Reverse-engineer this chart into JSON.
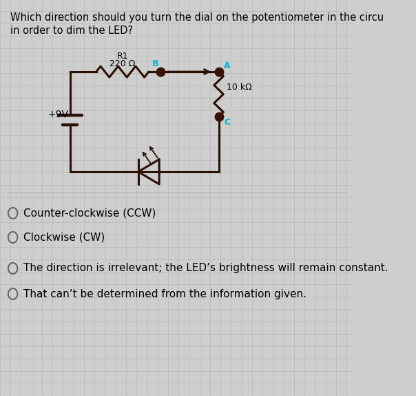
{
  "title_line1": "Which direction should you turn the dial on the potentiometer in the circu",
  "title_line2": "in order to dim the LED?",
  "question_color": "#000000",
  "background_color": "#cecece",
  "grid_color": "#b8b8b8",
  "circuit_color": "#2b1005",
  "circuit_linewidth": 2.2,
  "answer_options": [
    "Counter-clockwise (CCW)",
    "Clockwise (CW)",
    "The direction is irrelevant; the LED’s brightness will remain constant.",
    "That can’t be determined from the information given."
  ],
  "label_A": "A",
  "label_B": "B",
  "label_C": "C",
  "label_R1": "R1",
  "label_220": "220 Ω",
  "label_10k": "10 kΩ",
  "label_9V": "+9V",
  "node_color": "#3a1206",
  "label_color_ABC": "#00b8d4",
  "font_size_question": 10.5,
  "font_size_answer": 11,
  "font_size_circuit": 9
}
